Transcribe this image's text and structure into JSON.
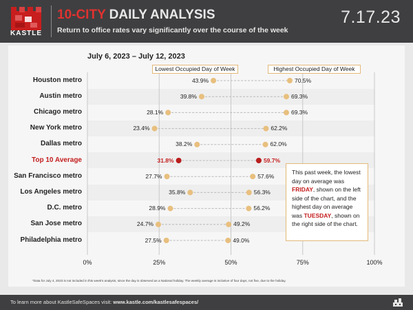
{
  "header": {
    "brand": "KASTLE",
    "title_accent": "10-CITY",
    "title_rest": " DAILY ANALYSIS",
    "subtitle": "Return to office rates vary significantly over the course of the week",
    "date": "7.17.23",
    "colors": {
      "header_bg": "#3f3f41",
      "accent_red": "#e0322f"
    }
  },
  "chart_data": {
    "type": "dumbbell",
    "date_range": "July 6, 2023 – July 12, 2023",
    "legend_low": "Lowest Occupied Day of Week",
    "legend_high": "Highest Occupied Day of Week",
    "xlim": [
      0,
      100
    ],
    "ticks": [
      "0%",
      "25%",
      "50%",
      "75%",
      "100%"
    ],
    "tick_values": [
      0,
      25,
      50,
      75,
      100
    ],
    "rows": [
      {
        "city": "Houston metro",
        "low": 43.9,
        "high": 70.5,
        "low_label": "43.9%",
        "high_label": "70.5%",
        "highlight": false
      },
      {
        "city": "Austin metro",
        "low": 39.8,
        "high": 69.3,
        "low_label": "39.8%",
        "high_label": "69.3%",
        "highlight": false
      },
      {
        "city": "Chicago metro",
        "low": 28.1,
        "high": 69.3,
        "low_label": "28.1%",
        "high_label": "69.3%",
        "highlight": false
      },
      {
        "city": "New York metro",
        "low": 23.4,
        "high": 62.2,
        "low_label": "23.4%",
        "high_label": "62.2%",
        "highlight": false
      },
      {
        "city": "Dallas metro",
        "low": 38.2,
        "high": 62.0,
        "low_label": "38.2%",
        "high_label": "62.0%",
        "highlight": false
      },
      {
        "city": "Top 10 Average",
        "low": 31.8,
        "high": 59.7,
        "low_label": "31.8%",
        "high_label": "59.7%",
        "highlight": true
      },
      {
        "city": "San Francisco metro",
        "low": 27.7,
        "high": 57.6,
        "low_label": "27.7%",
        "high_label": "57.6%",
        "highlight": false
      },
      {
        "city": "Los Angeles metro",
        "low": 35.8,
        "high": 56.3,
        "low_label": "35.8%",
        "high_label": "56.3%",
        "highlight": false
      },
      {
        "city": "D.C. metro",
        "low": 28.9,
        "high": 56.2,
        "low_label": "28.9%",
        "high_label": "56.2%",
        "highlight": false
      },
      {
        "city": "San Jose metro",
        "low": 24.7,
        "high": 49.2,
        "low_label": "24.7%",
        "high_label": "49.2%",
        "highlight": false
      },
      {
        "city": "Philadelphia metro",
        "low": 27.5,
        "high": 49.0,
        "low_label": "27.5%",
        "high_label": "49.0%",
        "highlight": false
      }
    ],
    "colors": {
      "dot": "#e8bf7e",
      "highlight_dot": "#b91c1c",
      "connector": "#b9b9b9",
      "gridline": "#c8c8c8"
    }
  },
  "note": {
    "part1": "This past week, the lowest day on average was ",
    "day_low": "FRIDAY",
    "part2": ", shown on the left side of the chart, and the highest day on average was ",
    "day_high": "TUESDAY",
    "part3": ", shown on the right side of the chart."
  },
  "footnote": "*Data for July 4, 2023 is not included in this week's analysis, since the day is observed as a National holiday. The weekly average is inclusive of four days, not five, due to the holiday.",
  "footer": {
    "text": "To learn more about KastleSafeSpaces visit: ",
    "link": "www.kastle.com/kastlesafespaces/",
    "icon": "building-icon"
  }
}
